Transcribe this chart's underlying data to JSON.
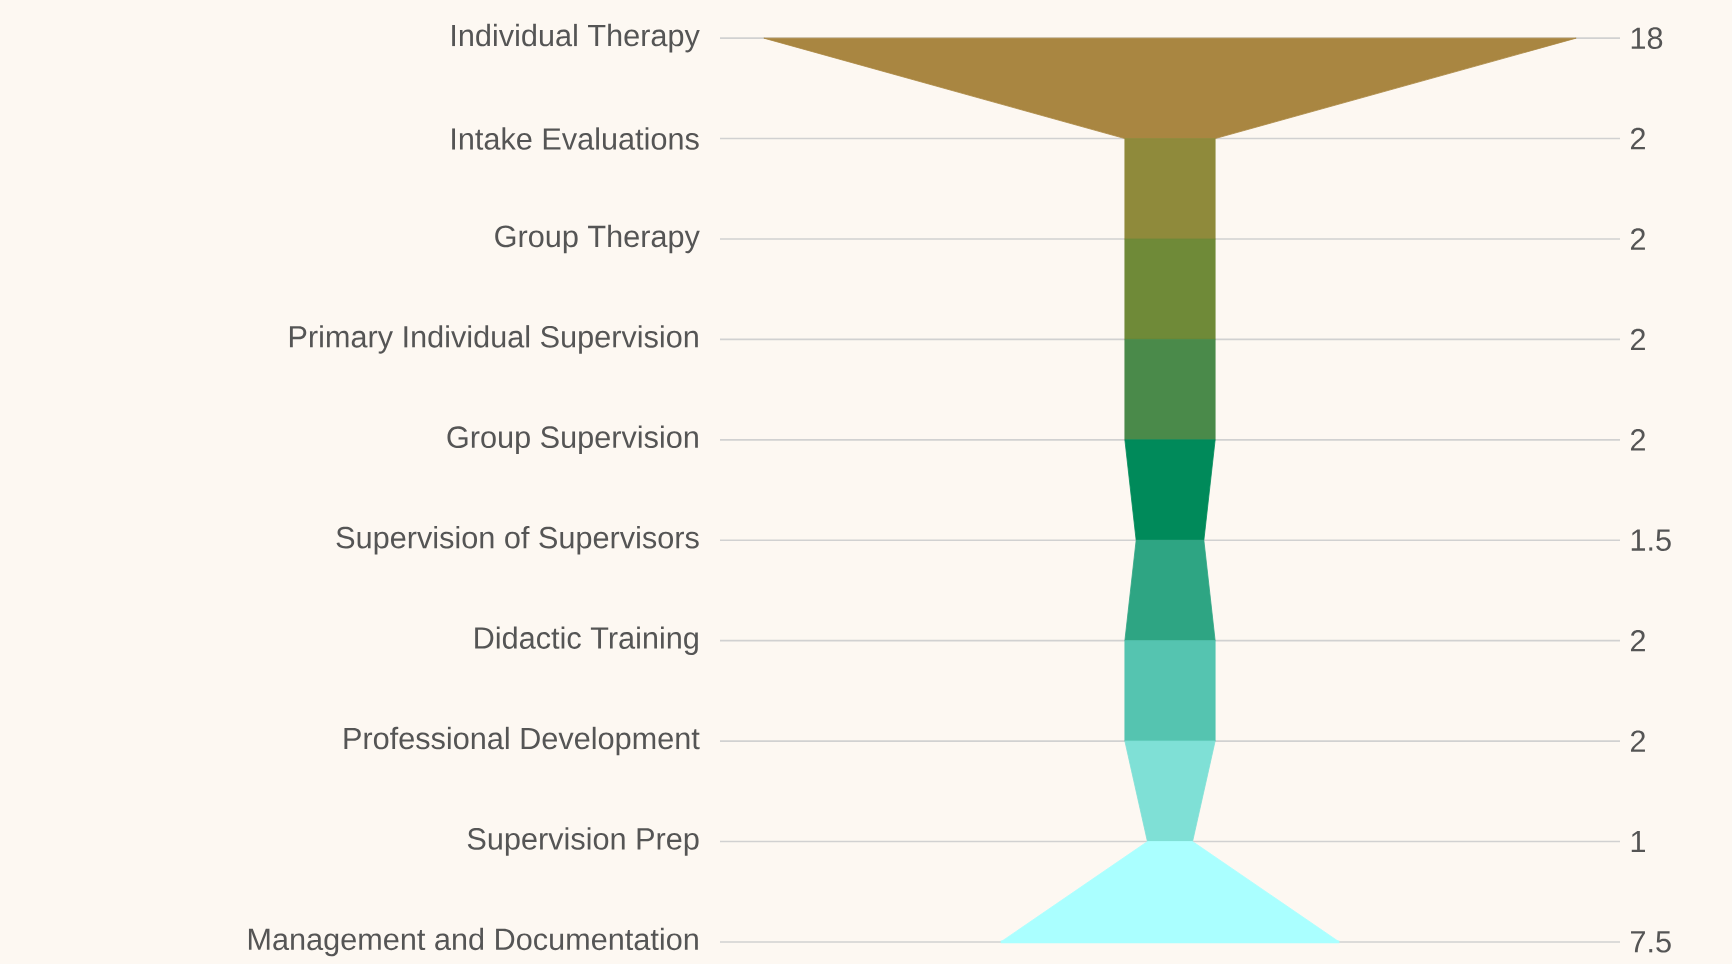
{
  "chart_data": {
    "type": "other",
    "categories": [
      "Individual Therapy",
      "Intake Evaluations",
      "Group Therapy",
      "Primary Individual Supervision",
      "Group Supervision",
      "Supervision of Supervisors",
      "Didactic Training",
      "Professional Development",
      "Supervision Prep",
      "Management and Documentation"
    ],
    "values": [
      18,
      2,
      2,
      2,
      2,
      1.5,
      2,
      2,
      1,
      7.5
    ],
    "colors": [
      "#a98641",
      "#8f8a3b",
      "#6f8a38",
      "#4a8a4a",
      "#008a5a",
      "#2ea583",
      "#55c4b0",
      "#7fe0d6",
      "#aaffff",
      "#aaffff"
    ],
    "data_labels": true
  }
}
